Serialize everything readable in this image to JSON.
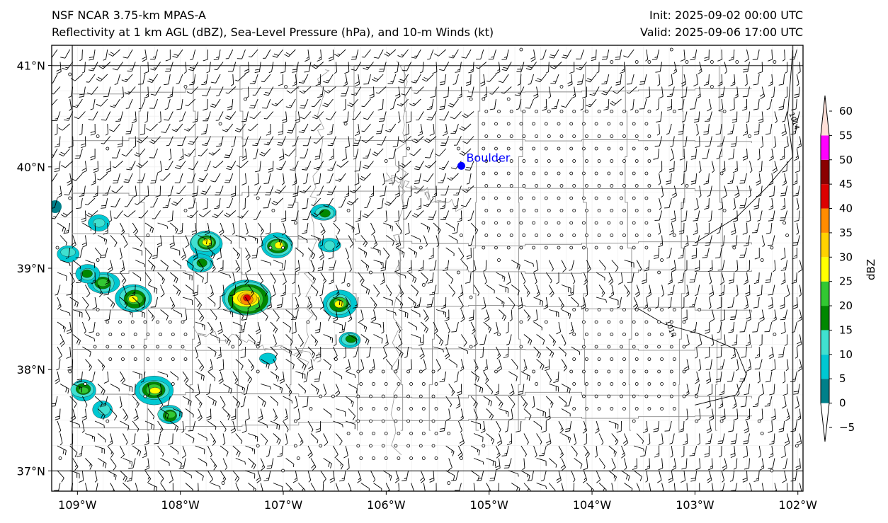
{
  "header": {
    "model": "NSF NCAR 3.75-km MPAS-A",
    "fields": "Reflectivity at 1 km AGL (dBZ), Sea-Level Pressure (hPa), and 10-m Winds (kt)",
    "init": "Init: 2025-09-02 00:00 UTC",
    "valid": "Valid: 2025-09-06 17:00 UTC"
  },
  "map": {
    "lon_range": [
      -109.25,
      -101.95
    ],
    "lat_range": [
      36.8,
      41.2
    ],
    "lon_ticks": [
      {
        "value": -109,
        "label": "109°W"
      },
      {
        "value": -108,
        "label": "108°W"
      },
      {
        "value": -107,
        "label": "107°W"
      },
      {
        "value": -106,
        "label": "106°W"
      },
      {
        "value": -105,
        "label": "105°W"
      },
      {
        "value": -104,
        "label": "104°W"
      },
      {
        "value": -103,
        "label": "103°W"
      },
      {
        "value": -102,
        "label": "102°W"
      }
    ],
    "lat_ticks": [
      {
        "value": 41,
        "label": "41°N"
      },
      {
        "value": 40,
        "label": "40°N"
      },
      {
        "value": 39,
        "label": "39°N"
      },
      {
        "value": 38,
        "label": "38°N"
      },
      {
        "value": 37,
        "label": "37°N"
      }
    ],
    "city": {
      "name": "Boulder",
      "lon": -105.27,
      "lat": 40.01,
      "color": "#0000ff"
    },
    "isobars": [
      {
        "label": "1014",
        "points": [
          [
            -102.05,
            41.15
          ],
          [
            -102.1,
            40.5
          ],
          [
            -102.05,
            40.1
          ],
          [
            -102.3,
            39.8
          ],
          [
            -102.6,
            39.5
          ],
          [
            -103.0,
            39.25
          ]
        ]
      },
      {
        "label": "1014",
        "points": [
          [
            -103.55,
            38.6
          ],
          [
            -103.3,
            38.45
          ],
          [
            -102.95,
            38.35
          ],
          [
            -102.6,
            38.2
          ],
          [
            -102.5,
            37.95
          ],
          [
            -102.6,
            37.75
          ],
          [
            -103.0,
            37.65
          ]
        ]
      }
    ],
    "storms": [
      {
        "lon": -108.75,
        "lat": 38.85,
        "max": 22
      },
      {
        "lon": -108.9,
        "lat": 38.95,
        "max": 15
      },
      {
        "lon": -109.1,
        "lat": 39.15,
        "max": 14
      },
      {
        "lon": -108.8,
        "lat": 39.45,
        "max": 12
      },
      {
        "lon": -108.45,
        "lat": 38.7,
        "max": 28
      },
      {
        "lon": -108.25,
        "lat": 37.8,
        "max": 28
      },
      {
        "lon": -108.95,
        "lat": 37.8,
        "max": 20
      },
      {
        "lon": -107.75,
        "lat": 39.25,
        "max": 25
      },
      {
        "lon": -107.35,
        "lat": 38.7,
        "max": 42
      },
      {
        "lon": -107.05,
        "lat": 39.22,
        "max": 25
      },
      {
        "lon": -106.45,
        "lat": 38.65,
        "max": 26
      },
      {
        "lon": -106.55,
        "lat": 39.23,
        "max": 12
      },
      {
        "lon": -106.6,
        "lat": 39.55,
        "max": 16
      },
      {
        "lon": -107.15,
        "lat": 38.1,
        "max": 8
      },
      {
        "lon": -108.1,
        "lat": 37.55,
        "max": 20
      },
      {
        "lon": -108.75,
        "lat": 37.6,
        "max": 14
      },
      {
        "lon": -106.35,
        "lat": 38.3,
        "max": 16
      },
      {
        "lon": -107.8,
        "lat": 39.05,
        "max": 18
      }
    ]
  },
  "colorbar": {
    "label": "dBZ",
    "levels": [
      -5,
      0,
      5,
      10,
      15,
      20,
      25,
      30,
      35,
      40,
      45,
      50,
      55,
      60
    ],
    "colors": [
      "#ffffff",
      "#00808a",
      "#00c8d2",
      "#40e0d0",
      "#008800",
      "#32c832",
      "#ffff00",
      "#ffd200",
      "#ff8c00",
      "#dd0000",
      "#8b0000",
      "#ff00ff",
      "#ffe0d8"
    ]
  }
}
